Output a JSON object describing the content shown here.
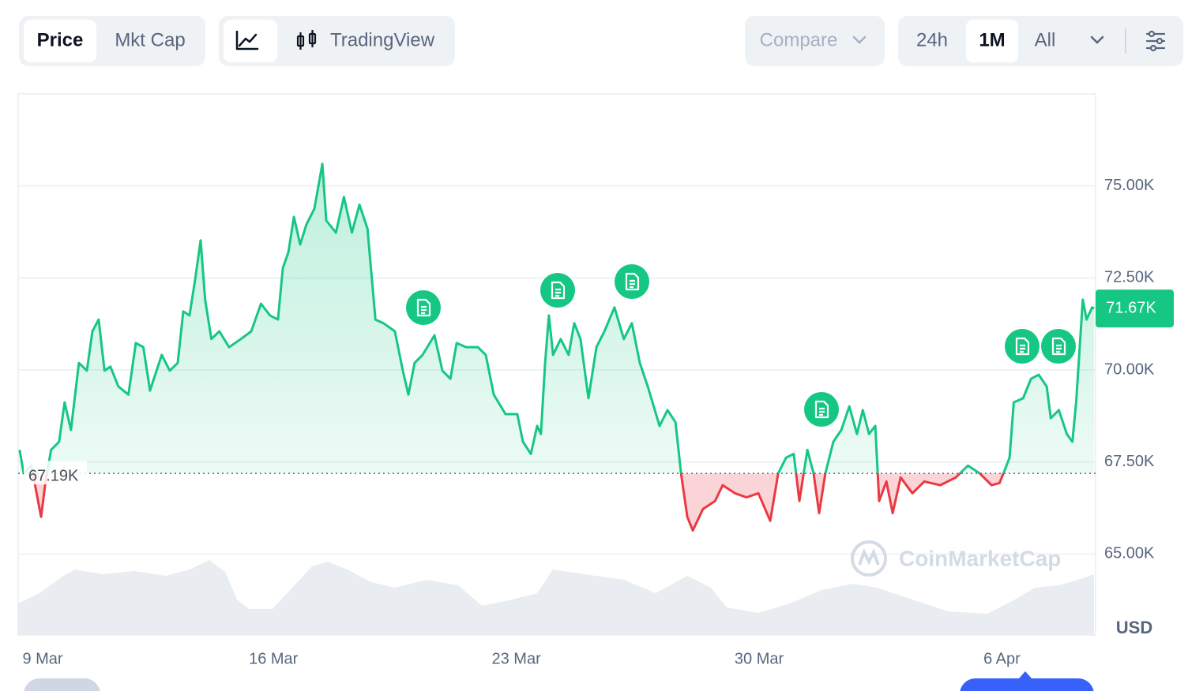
{
  "toolbar": {
    "tabs": [
      "Price",
      "Mkt Cap"
    ],
    "view": "TradingView",
    "compare": "Compare",
    "ranges": [
      "24h",
      "1M",
      "All"
    ]
  },
  "chart_data": {
    "type": "line",
    "x": [
      -0.32,
      -0.2,
      0.02,
      0.3,
      0.43,
      0.59,
      0.82,
      0.98,
      1.16,
      1.39,
      1.62,
      1.78,
      1.96,
      2.13,
      2.3,
      2.53,
      2.82,
      3.03,
      3.25,
      3.44,
      3.78,
      4.01,
      4.24,
      4.4,
      4.58,
      4.74,
      4.9,
      5.03,
      5.21,
      5.44,
      5.72,
      6.06,
      6.36,
      6.64,
      6.9,
      7.13,
      7.27,
      7.43,
      7.59,
      7.77,
      7.95,
      8.18,
      8.41,
      8.52,
      8.8,
      9.03,
      9.26,
      9.48,
      9.71,
      9.94,
      10.17,
      10.5,
      10.73,
      10.89,
      11.07,
      11.3,
      11.64,
      11.87,
      12.1,
      12.28,
      12.55,
      12.89,
      13.12,
      13.35,
      13.69,
      14.03,
      14.19,
      14.42,
      14.6,
      14.71,
      14.83,
      14.94,
      15.06,
      15.28,
      15.51,
      15.67,
      15.85,
      16.08,
      16.31,
      16.54,
      16.83,
      17.1,
      17.33,
      17.56,
      17.79,
      18.13,
      18.36,
      18.59,
      18.75,
      18.93,
      19.09,
      19.38,
      19.73,
      19.95,
      20.3,
      20.64,
      20.98,
      21.32,
      21.55,
      21.78,
      22.0,
      22.16,
      22.39,
      22.57,
      22.73,
      22.91,
      23.14,
      23.37,
      23.6,
      23.82,
      23.99,
      24.17,
      24.35,
      24.46,
      24.67,
      24.85,
      25.08,
      25.42,
      25.76,
      26.22,
      26.67,
      27.02,
      27.36,
      27.7,
      27.93,
      28.09,
      28.22,
      28.34,
      28.61,
      28.84,
      29.06,
      29.29,
      29.41,
      29.64,
      29.87,
      30.03,
      30.14,
      30.33,
      30.44,
      30.6,
      30.66
    ],
    "values": [
      67830,
      67190,
      67400,
      66010,
      66970,
      67830,
      68050,
      69120,
      68370,
      70190,
      69980,
      71050,
      71370,
      69980,
      70090,
      69550,
      69330,
      70730,
      70620,
      69440,
      70410,
      69980,
      70190,
      71590,
      71480,
      72450,
      73520,
      71910,
      70840,
      71050,
      70620,
      70840,
      71050,
      71800,
      71480,
      71370,
      72770,
      73200,
      74160,
      73410,
      73950,
      74380,
      75600,
      74060,
      73730,
      74700,
      73730,
      74490,
      73840,
      71370,
      71270,
      71050,
      69980,
      69330,
      70190,
      70410,
      70940,
      69980,
      69760,
      70730,
      70620,
      70620,
      70410,
      69330,
      68800,
      68800,
      68050,
      67720,
      68480,
      68260,
      70190,
      71480,
      70410,
      70840,
      70410,
      71270,
      70840,
      69230,
      70620,
      71050,
      71700,
      70840,
      71270,
      70190,
      69550,
      68480,
      68910,
      68580,
      67190,
      66010,
      65640,
      66220,
      66440,
      66870,
      66650,
      66540,
      66650,
      65900,
      67190,
      67620,
      67720,
      66440,
      67830,
      67190,
      66110,
      67190,
      68050,
      68370,
      69010,
      68260,
      68910,
      68260,
      68480,
      66440,
      66970,
      66110,
      67080,
      66650,
      66970,
      66870,
      67080,
      67400,
      67190,
      66870,
      66930,
      67300,
      67620,
      69120,
      69230,
      69760,
      69870,
      69550,
      68690,
      68910,
      68260,
      68050,
      69120,
      71910,
      71370,
      71700,
      71670
    ],
    "up_color": "#16c784",
    "down_color": "#ea3943",
    "baseline": {
      "value": 67190,
      "label": "67.19K"
    },
    "last": {
      "value": 71670,
      "label": "71.67K"
    },
    "xlim": [
      -0.36,
      30.7
    ],
    "xticks": [
      {
        "value": 0,
        "label": "9 Mar"
      },
      {
        "value": 7,
        "label": "16 Mar"
      },
      {
        "value": 14,
        "label": "23 Mar"
      },
      {
        "value": 21,
        "label": "30 Mar"
      },
      {
        "value": 28,
        "label": "6 Apr"
      }
    ],
    "ylim": [
      62800,
      77500
    ],
    "yticks": [
      {
        "value": 65000,
        "label": "65.00K"
      },
      {
        "value": 67500,
        "label": "67.50K"
      },
      {
        "value": 70000,
        "label": "70.00K"
      },
      {
        "value": 72500,
        "label": "72.50K"
      },
      {
        "value": 75000,
        "label": "75.00K"
      }
    ],
    "grid": true,
    "y_label": "USD",
    "watermark": "CoinMarketCap"
  }
}
